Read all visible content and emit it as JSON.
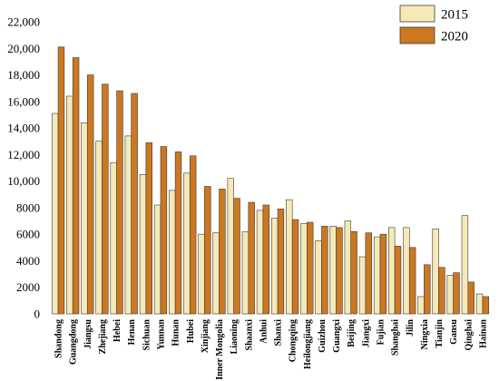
{
  "chart_data": {
    "type": "bar",
    "title": "",
    "xlabel": "",
    "ylabel": "",
    "ylim": [
      0,
      22000
    ],
    "yticks": [
      0,
      2000,
      4000,
      6000,
      8000,
      10000,
      12000,
      14000,
      16000,
      18000,
      20000,
      22000
    ],
    "ytick_labels": [
      "0",
      "2000",
      "4000",
      "6000",
      "8000",
      "10,000",
      "12,000",
      "14,000",
      "16,000",
      "18,000",
      "20,000",
      "22,000"
    ],
    "legend_position": "top-right",
    "categories": [
      "Shandong",
      "Guangdong",
      "Jiangsu",
      "Zhejiang",
      "Hebei",
      "Henan",
      "Sichuan",
      "Yunnan",
      "Hunan",
      "Hubei",
      "Xinjiang",
      "Inner Mongolia",
      "Liaoning",
      "Shaanxi",
      "Anhui",
      "Shanxi",
      "Chongqing",
      "Heilongjiang",
      "Guizhou",
      "Guangxi",
      "Beijing",
      "Jiangxi",
      "Fujian",
      "Shanghai",
      "Jilin",
      "Ningxia",
      "Tianjin",
      "Gansu",
      "Qinghai",
      "Hainan"
    ],
    "series": [
      {
        "name": "2015",
        "color": "#f6e9b6",
        "values": [
          15100,
          16400,
          14400,
          13000,
          11400,
          13400,
          10500,
          8200,
          9300,
          10600,
          6000,
          6100,
          10200,
          6200,
          7800,
          7200,
          8600,
          6800,
          5500,
          6600,
          7000,
          4300,
          5800,
          6500,
          6500,
          1300,
          6400,
          2900,
          7400,
          1500
        ]
      },
      {
        "name": "2020",
        "color": "#cc7722",
        "values": [
          20100,
          19300,
          18000,
          17300,
          16800,
          16600,
          12900,
          12600,
          12200,
          11900,
          9600,
          9400,
          8700,
          8400,
          8200,
          7900,
          7100,
          6900,
          6600,
          6500,
          6200,
          6100,
          6000,
          5100,
          5000,
          3700,
          3500,
          3100,
          2400,
          1300
        ]
      }
    ]
  }
}
